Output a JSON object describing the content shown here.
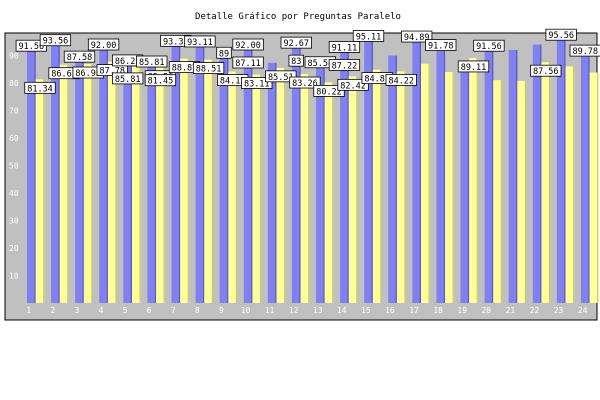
{
  "chart_data": {
    "type": "bar",
    "title": "Detalle Gráfico por Preguntas Paralelo",
    "xlabel": "",
    "ylabel": "",
    "ylim": [
      0,
      100
    ],
    "yticks": [
      10,
      20,
      30,
      40,
      50,
      60,
      70,
      80,
      90
    ],
    "grid": false,
    "legend": "none",
    "categories": [
      "1",
      "2",
      "3",
      "4",
      "5",
      "6",
      "7",
      "8",
      "9",
      "10",
      "11",
      "12",
      "13",
      "14",
      "15",
      "16",
      "17",
      "18",
      "19",
      "20",
      "21",
      "22",
      "23",
      "24"
    ],
    "series": [
      {
        "color": "#8080f0",
        "values": [
          91.56,
          93.56,
          87.58,
          92.0,
          86.22,
          85.81,
          93.33,
          93.11,
          89.0,
          92.0,
          87.33,
          92.67,
          85.54,
          91.11,
          95.11,
          90.0,
          94.89,
          91.78,
          84.0,
          91.56,
          92.0,
          94.0,
          95.56,
          89.78
        ],
        "labels": [
          "91.56",
          "93.56",
          "87.58",
          "92.00",
          "86.22",
          "85.81",
          "93.33",
          "93.11",
          "89",
          "92.00",
          "",
          "92.67",
          "85.54",
          "91.11",
          "95.11",
          "",
          "94.89",
          "91.78",
          "",
          "91.56",
          "",
          "",
          "95.56",
          "89.78"
        ]
      },
      {
        "color": "#ffff99",
        "values": [
          81.34,
          86.65,
          86.9,
          87.78,
          85.81,
          85.56,
          88.87,
          88.51,
          84.15,
          83.11,
          85.51,
          83.26,
          80.22,
          82.42,
          84.87,
          84.22,
          87.0,
          84.0,
          89.11,
          81.0,
          80.77,
          87.56,
          86.0,
          83.81
        ],
        "labels": [
          "81.34",
          "86.65",
          "86.90",
          "87.78",
          "",
          "85.56",
          "88.87",
          "88.51",
          "84.15",
          "83.11",
          "85.51",
          "83.26",
          "80.22",
          "82.42",
          "84.87",
          "84.22",
          "",
          "",
          "89.11",
          "",
          "",
          "87.56",
          "",
          ""
        ]
      }
    ],
    "extra_labels": [
      {
        "category": "5",
        "series": 0,
        "text": "85.81"
      },
      {
        "category": "6",
        "series": 1,
        "text": "81.45"
      },
      {
        "category": "10",
        "series": 0,
        "text": "87.11"
      },
      {
        "category": "12",
        "series": 0,
        "text": "83"
      },
      {
        "category": "14",
        "series": 0,
        "text": "87.22"
      }
    ]
  }
}
